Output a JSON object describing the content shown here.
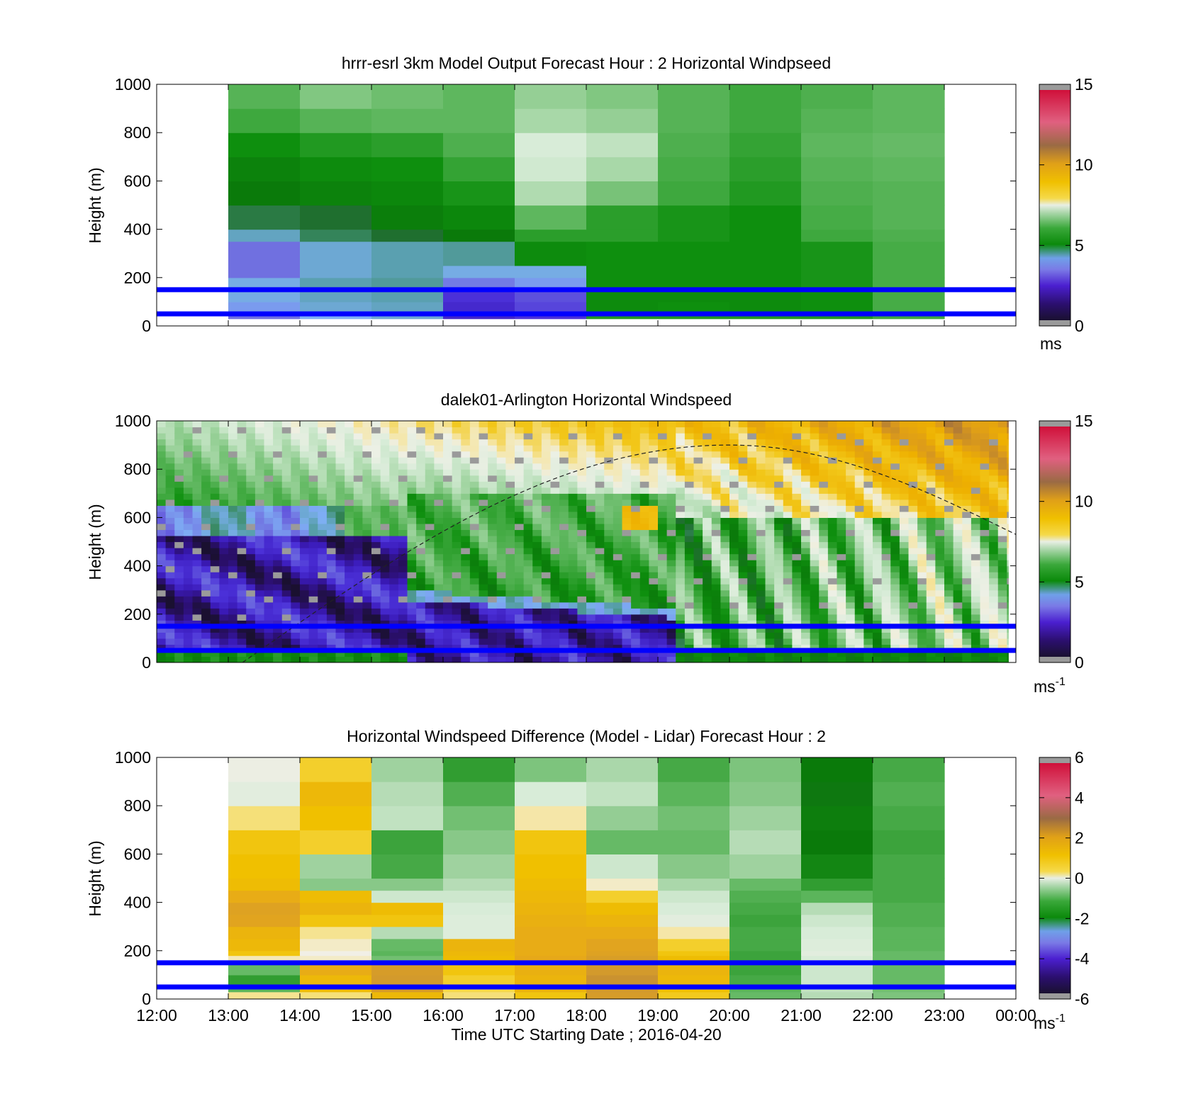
{
  "chart_data": [
    {
      "type": "heatmap",
      "title": "hrrr-esrl 3km Model Output   Forecast Hour : 2 Horizontal Windpseed",
      "xlabel": "",
      "ylabel": "Height (m)",
      "ylim": [
        0,
        1000
      ],
      "yticks": [
        "0",
        "200",
        "400",
        "600",
        "800",
        "1000"
      ],
      "xlim_hours": [
        12,
        24
      ],
      "colorbar": {
        "min": 0,
        "max": 15,
        "ticks": [
          "0",
          "5",
          "10",
          "15"
        ],
        "unit": "ms",
        "unit_sup": ""
      },
      "reference_lines_m": [
        50,
        150
      ],
      "x_start_hours": [
        13,
        14,
        15,
        16,
        17,
        18,
        19,
        20,
        21,
        22
      ],
      "y_bounds_m": [
        30,
        50,
        100,
        150,
        200,
        250,
        350,
        400,
        500,
        600,
        700,
        800,
        900,
        1000
      ],
      "values": [
        [
          2.2,
          2.8,
          3.0,
          1.3,
          1.6,
          4.9,
          4.9,
          4.9,
          4.9,
          5.2
        ],
        [
          2.6,
          3.0,
          3.1,
          1.4,
          1.8,
          4.6,
          4.7,
          4.6,
          4.7,
          5.3
        ],
        [
          2.9,
          3.1,
          3.2,
          1.6,
          1.9,
          4.6,
          4.6,
          4.6,
          4.7,
          5.3
        ],
        [
          2.9,
          3.2,
          3.3,
          2.3,
          2.6,
          4.7,
          4.7,
          4.7,
          4.8,
          5.3
        ],
        [
          2.2,
          3.0,
          3.2,
          2.9,
          2.9,
          4.7,
          4.7,
          4.7,
          4.8,
          5.3
        ],
        [
          2.2,
          3.0,
          3.2,
          3.3,
          4.6,
          4.7,
          4.7,
          4.7,
          4.8,
          5.3
        ],
        [
          3.1,
          3.6,
          3.8,
          4.2,
          5.0,
          5.0,
          4.8,
          4.7,
          5.2,
          5.4
        ],
        [
          3.7,
          3.8,
          4.3,
          4.5,
          5.6,
          5.0,
          4.8,
          4.7,
          5.3,
          5.5
        ],
        [
          4.2,
          4.4,
          4.5,
          4.8,
          6.5,
          5.9,
          5.2,
          4.9,
          5.4,
          5.5
        ],
        [
          4.4,
          4.6,
          4.7,
          5.1,
          6.9,
          6.4,
          5.3,
          5.0,
          5.5,
          5.6
        ],
        [
          4.7,
          4.9,
          5.0,
          5.4,
          7.0,
          6.7,
          5.4,
          5.1,
          5.6,
          5.7
        ],
        [
          5.2,
          5.5,
          5.6,
          5.6,
          6.4,
          6.2,
          5.5,
          5.2,
          5.5,
          5.6
        ],
        [
          5.5,
          6.0,
          5.8,
          5.6,
          6.2,
          6.0,
          5.5,
          5.2,
          5.4,
          5.6
        ]
      ]
    },
    {
      "type": "heatmap",
      "title": "dalek01-Arlington  Horizontal Windspeed",
      "xlabel": "",
      "ylabel": "Height (m)",
      "ylim": [
        0,
        1000
      ],
      "yticks": [
        "0",
        "200",
        "400",
        "600",
        "800",
        "1000"
      ],
      "xlim_hours": [
        12,
        24
      ],
      "colorbar": {
        "min": 0,
        "max": 15,
        "ticks": [
          "0",
          "5",
          "10",
          "15"
        ],
        "unit": "ms",
        "unit_sup": "-1"
      },
      "reference_lines_m": [
        50,
        150
      ],
      "profile_times_hours": [
        12,
        12.5,
        13,
        13.5,
        14,
        14.5,
        15,
        15.5,
        16,
        16.5,
        17,
        17.5,
        18,
        18.5,
        19,
        19.5,
        20,
        20.5,
        21,
        21.5,
        22,
        22.5,
        23,
        23.5
      ],
      "profile_heights_m": [
        0,
        50,
        100,
        150,
        200,
        250,
        300,
        350,
        400,
        450,
        500,
        550,
        600,
        650,
        700,
        750,
        800,
        850,
        900,
        950,
        1000
      ],
      "boundary_layer_curve": {
        "start_hours": 13.2,
        "peak_hours": 20,
        "peak_m": 900,
        "end_hours": 24,
        "end_m": 530
      }
    },
    {
      "type": "heatmap",
      "title": "Horizontal Windspeed Difference (Model - Lidar) Forecast Hour : 2",
      "xlabel": "Time UTC  Starting Date ; 2016-04-20",
      "ylabel": "Height (m)",
      "ylim": [
        0,
        1000
      ],
      "yticks": [
        "0",
        "200",
        "400",
        "600",
        "800",
        "1000"
      ],
      "xlim_hours": [
        12,
        24
      ],
      "xticks": [
        "12:00",
        "13:00",
        "14:00",
        "15:00",
        "16:00",
        "17:00",
        "18:00",
        "19:00",
        "20:00",
        "21:00",
        "22:00",
        "23:00",
        "00:00"
      ],
      "colorbar": {
        "min": -6,
        "max": 6,
        "ticks": [
          "-6",
          "-4",
          "-2",
          "0",
          "2",
          "4",
          "6"
        ],
        "unit": "ms",
        "unit_sup": "-1"
      },
      "reference_lines_m": [
        50,
        150
      ],
      "x_start_hours": [
        13,
        14,
        15,
        16,
        17,
        18,
        19,
        20,
        21,
        22
      ],
      "y_bounds_m": [
        0,
        30,
        60,
        100,
        150,
        180,
        200,
        250,
        300,
        350,
        400,
        450,
        500,
        600,
        700,
        800,
        900,
        1000
      ],
      "values": [
        [
          0.5,
          0.6,
          1.5,
          0.6,
          1.2,
          2.5,
          1.1,
          -1.5,
          -0.8,
          -1.3
        ],
        [
          -1.6,
          1.4,
          2.5,
          0.8,
          1.6,
          2.6,
          1.3,
          -1.6,
          -0.7,
          -1.4
        ],
        [
          -2.0,
          1.5,
          2.6,
          1.0,
          1.6,
          2.7,
          1.5,
          -1.8,
          -0.6,
          -1.5
        ],
        [
          -1.5,
          1.8,
          2.5,
          1.2,
          1.7,
          2.6,
          1.6,
          -1.9,
          -0.6,
          -1.5
        ],
        [
          0.3,
          0.2,
          -1.4,
          1.4,
          1.9,
          2.4,
          1.4,
          -1.9,
          -0.5,
          -1.5
        ],
        [
          1.2,
          0.0,
          -1.6,
          1.5,
          1.8,
          2.2,
          1.2,
          -1.9,
          -0.3,
          -1.5
        ],
        [
          1.5,
          0.2,
          -1.5,
          1.6,
          1.8,
          2.1,
          1.0,
          -1.8,
          -0.4,
          -1.6
        ],
        [
          1.6,
          0.5,
          -0.8,
          -0.4,
          1.8,
          1.8,
          0.4,
          -1.8,
          -0.5,
          -1.6
        ],
        [
          2.1,
          1.2,
          1.2,
          -0.4,
          1.7,
          1.6,
          -0.3,
          -1.9,
          -0.6,
          -1.7
        ],
        [
          2.2,
          1.6,
          1.4,
          -0.5,
          1.6,
          1.4,
          -0.5,
          -1.8,
          -0.8,
          -1.7
        ],
        [
          1.8,
          1.4,
          -0.6,
          -0.6,
          1.5,
          1.0,
          -0.6,
          -1.7,
          -1.6,
          -1.8
        ],
        [
          1.4,
          -1.2,
          -1.2,
          -0.8,
          1.4,
          0.2,
          -0.9,
          -1.5,
          -2.0,
          -1.8
        ],
        [
          1.3,
          -1.0,
          -1.8,
          -1.0,
          1.3,
          -0.6,
          -1.2,
          -1.0,
          -2.5,
          -1.8
        ],
        [
          1.2,
          1.0,
          -1.9,
          -1.2,
          1.2,
          -1.5,
          -1.5,
          -0.8,
          -2.8,
          -1.9
        ],
        [
          0.6,
          1.3,
          -0.7,
          -1.4,
          0.4,
          -1.1,
          -1.4,
          -1.0,
          -2.7,
          -1.8
        ],
        [
          -0.3,
          1.5,
          -0.8,
          -1.7,
          -0.5,
          -0.7,
          -1.6,
          -1.2,
          -2.9,
          -1.7
        ],
        [
          -0.1,
          1.0,
          -1.0,
          -2.0,
          -1.3,
          -0.9,
          -1.8,
          -1.3,
          -2.8,
          -1.8
        ]
      ]
    }
  ]
}
